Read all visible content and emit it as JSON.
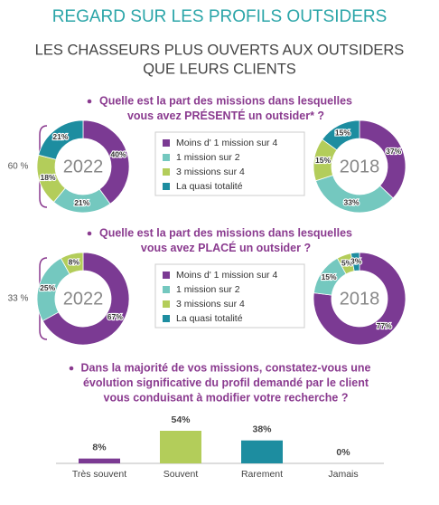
{
  "title": "REGARD SUR LES PROFILS OUTSIDERS",
  "subtitle": [
    "LES CHASSEURS PLUS OUVERTS AUX OUTSIDERS",
    "QUE LEURS CLIENTS"
  ],
  "chart_data": [
    {
      "type": "donut",
      "question": [
        "Quelle est la part des missions dans lesquelles",
        "vous avez PRÉSENTÉ un outsider* ?"
      ],
      "annotation": "60 %",
      "categories": [
        "Moins d' 1 mission sur 4",
        "1 mission sur 2",
        "3 missions sur 4",
        "La quasi totalité"
      ],
      "colors": [
        "#7b3a93",
        "#74c8bf",
        "#b3cd5a",
        "#1d8da0"
      ],
      "series": [
        {
          "name": "2022",
          "values": [
            40,
            21,
            18,
            21
          ],
          "value_labels": [
            "40%",
            "21%",
            "18%",
            "21%"
          ]
        },
        {
          "name": "2018",
          "values": [
            37,
            33,
            15,
            15
          ],
          "value_labels": [
            "37%",
            "33%",
            "15%",
            "15%"
          ]
        }
      ]
    },
    {
      "type": "donut",
      "question": [
        "Quelle est la part des missions dans lesquelles",
        "vous avez PLACÉ un outsider ?"
      ],
      "annotation": "33 %",
      "categories": [
        "Moins d' 1 mission sur 4",
        "1 mission sur 2",
        "3 missions sur 4",
        "La quasi totalité"
      ],
      "colors": [
        "#7b3a93",
        "#74c8bf",
        "#b3cd5a",
        "#1d8da0"
      ],
      "series": [
        {
          "name": "2022",
          "values": [
            67,
            25,
            8,
            0
          ],
          "value_labels": [
            "67%",
            "25%",
            "8%",
            null
          ]
        },
        {
          "name": "2018",
          "values": [
            77,
            15,
            5,
            3
          ],
          "value_labels": [
            "77%",
            "15%",
            "5%",
            "3%"
          ]
        }
      ]
    },
    {
      "type": "bar",
      "question": [
        "Dans la majorité de vos missions, constatez-vous une",
        "évolution significative du profil demandé par le client",
        "vous conduisant à modifier votre recherche ?"
      ],
      "categories": [
        "Très souvent",
        "Souvent",
        "Rarement",
        "Jamais"
      ],
      "values": [
        8,
        54,
        38,
        0
      ],
      "value_labels": [
        "8%",
        "54%",
        "38%",
        "0%"
      ],
      "colors": [
        "#7b3a93",
        "#b3cd5a",
        "#1d8da0",
        "#999999"
      ]
    }
  ]
}
